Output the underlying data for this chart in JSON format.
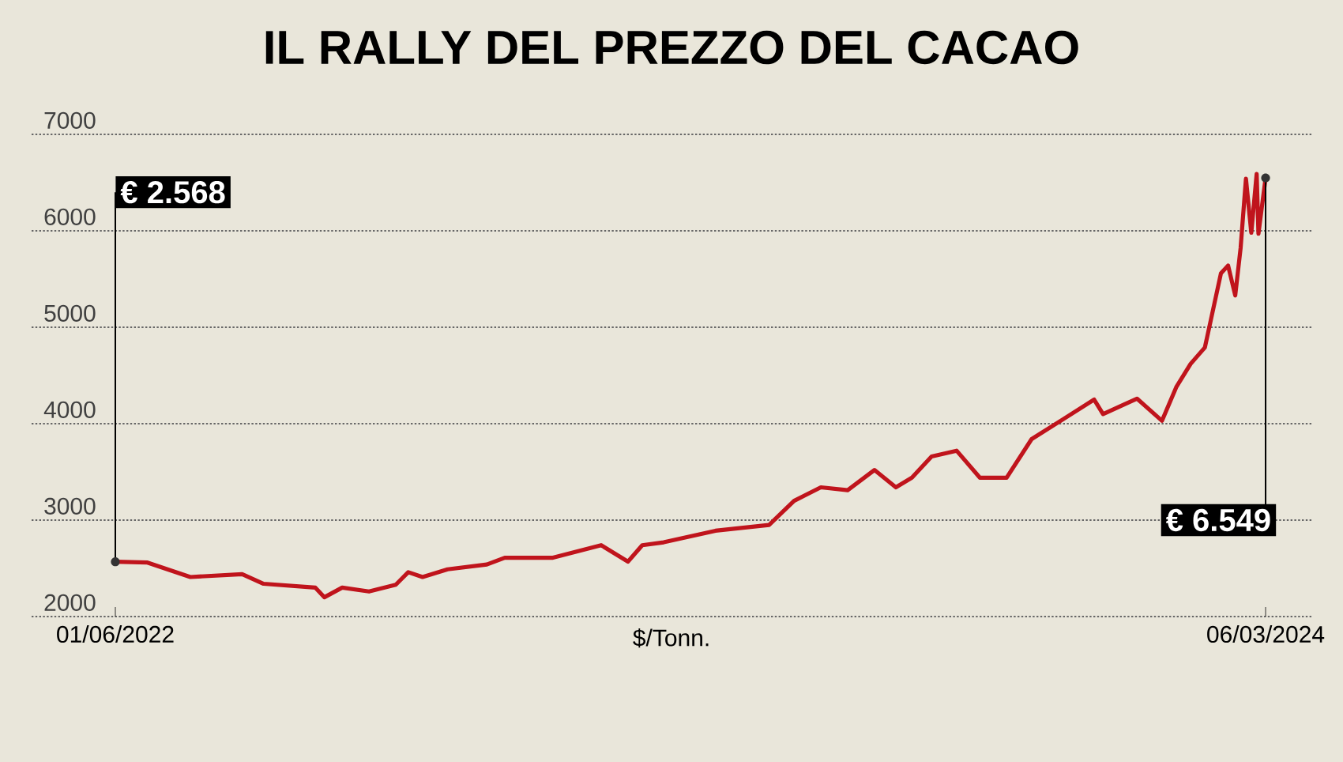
{
  "chart_data": {
    "type": "line",
    "title": "IL RALLY DEL PREZZO DEL CACAO",
    "xlabel": "$/Tonn.",
    "x": [
      "2022-06-01",
      "2022-06-19",
      "2022-07-13",
      "2022-08-11",
      "2022-08-23",
      "2022-09-21",
      "2022-09-26",
      "2022-10-06",
      "2022-10-21",
      "2022-11-05",
      "2022-11-12",
      "2022-11-20",
      "2022-12-04",
      "2022-12-26",
      "2023-01-05",
      "2023-02-01",
      "2023-02-28",
      "2023-03-15",
      "2023-03-23",
      "2023-04-04",
      "2023-05-03",
      "2023-06-02",
      "2023-06-16",
      "2023-07-01",
      "2023-07-16",
      "2023-07-31",
      "2023-08-12",
      "2023-08-21",
      "2023-09-01",
      "2023-09-15",
      "2023-09-28",
      "2023-10-13",
      "2023-10-27",
      "2023-11-14",
      "2023-12-01",
      "2023-12-06",
      "2023-12-25",
      "2024-01-08",
      "2024-01-16",
      "2024-01-24",
      "2024-02-01",
      "2024-02-10",
      "2024-02-14",
      "2024-02-18",
      "2024-02-21",
      "2024-02-24",
      "2024-02-27",
      "2024-03-01",
      "2024-03-02",
      "2024-03-06"
    ],
    "series": [
      {
        "color": "#c0141c",
        "values": [
          2568,
          2560,
          2410,
          2440,
          2340,
          2300,
          2200,
          2300,
          2260,
          2330,
          2460,
          2410,
          2490,
          2540,
          2610,
          2610,
          2740,
          2570,
          2740,
          2770,
          2890,
          2950,
          3200,
          3340,
          3310,
          3520,
          3340,
          3440,
          3660,
          3720,
          3440,
          3440,
          3840,
          4050,
          4250,
          4100,
          4260,
          4030,
          4380,
          4620,
          4790,
          5560,
          5640,
          5330,
          5820,
          6540,
          5980,
          6590,
          5970,
          6549
        ]
      }
    ],
    "xlim": [
      "2022-06-01",
      "2024-03-06"
    ],
    "xticks": [
      {
        "value": "2022-06-01",
        "label": "01/06/2022"
      },
      {
        "value": "2024-03-06",
        "label": "06/03/2024"
      }
    ],
    "ylim": [
      2000,
      7000
    ],
    "yticks": [
      2000,
      3000,
      4000,
      5000,
      6000,
      7000
    ],
    "grid": "y",
    "marker": "none",
    "line_style": "solid",
    "annotations": [
      "€ 2.568",
      "€ 6.549"
    ]
  }
}
